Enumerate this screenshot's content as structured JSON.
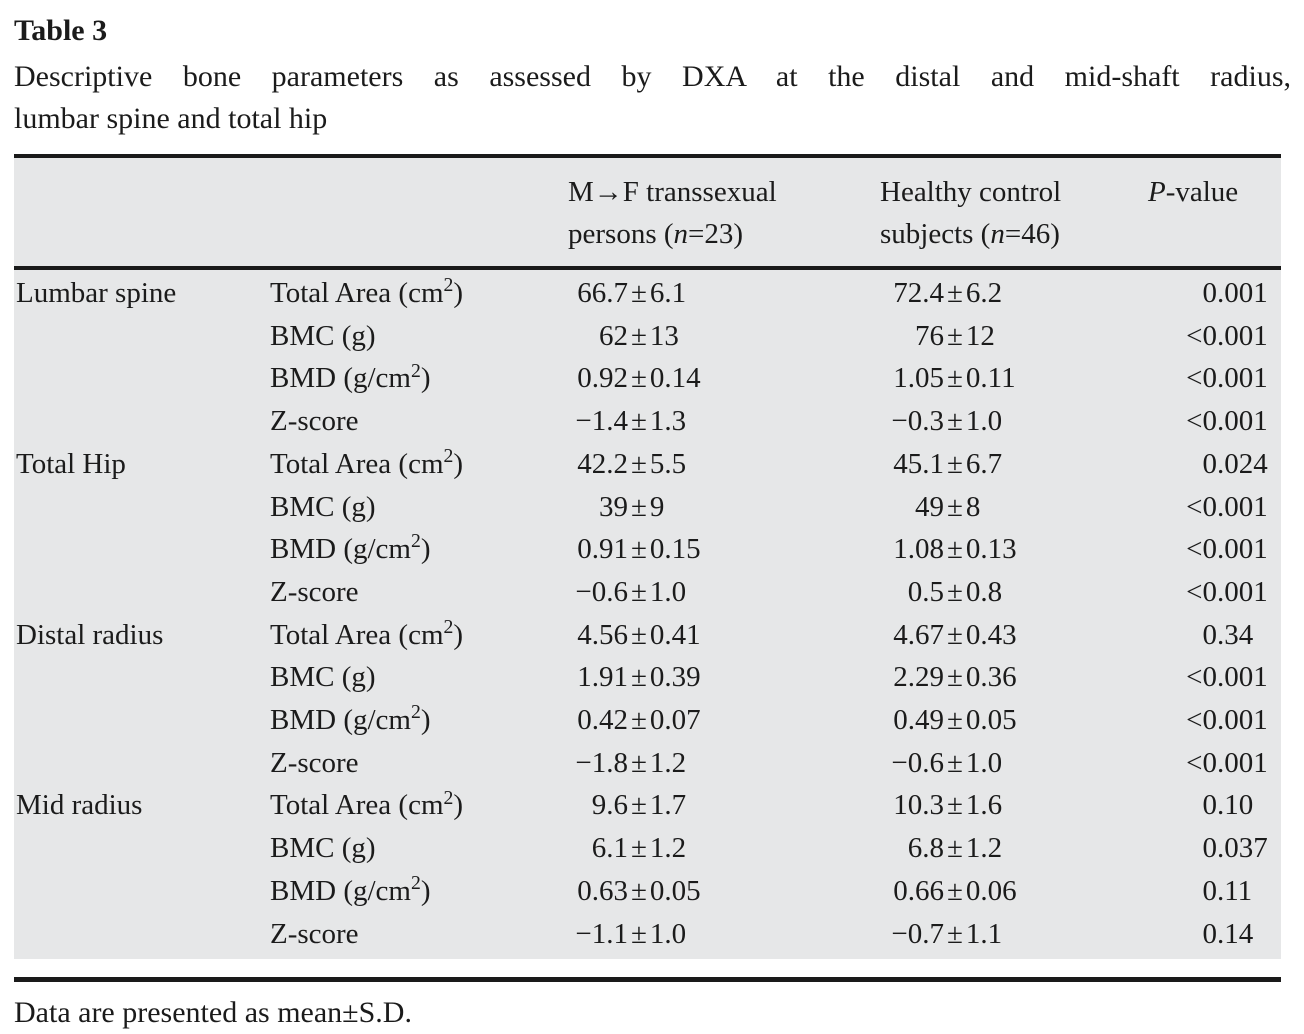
{
  "title": "Table 3",
  "caption": {
    "lines": [
      "Descriptive bone parameters as assessed by DXA at the distal and mid-shaft radius,",
      "lumbar spine and total hip"
    ]
  },
  "footnote": "Data are presented as mean±S.D.",
  "table": {
    "header": {
      "site_col": "",
      "param_col": "",
      "col_mf": {
        "line1": "M→F transsexual",
        "line2": "persons (*n*=23)"
      },
      "col_control": {
        "line1": "Healthy control",
        "line2": "subjects (*n*=46)"
      },
      "col_p": "*P*-value"
    },
    "sections": [
      {
        "site": "Lumbar spine",
        "rows": [
          {
            "param": "Total Area (cm^2)",
            "mf": "66.7±6.1",
            "control": "72.4±6.2",
            "p": "0.001"
          },
          {
            "param": "BMC (g)",
            "mf": "62±13",
            "control": "76±12",
            "p": "<0.001"
          },
          {
            "param": "BMD (g/cm^2)",
            "mf": "0.92±0.14",
            "control": "1.05±0.11",
            "p": "<0.001"
          },
          {
            "param": "Z-score",
            "mf": "−1.4±1.3",
            "control": "−0.3±1.0",
            "p": "<0.001"
          }
        ]
      },
      {
        "site": "Total Hip",
        "rows": [
          {
            "param": "Total Area (cm^2)",
            "mf": "42.2±5.5",
            "control": "45.1±6.7",
            "p": "0.024"
          },
          {
            "param": "BMC (g)",
            "mf": "39±9",
            "control": "49±8",
            "p": "<0.001"
          },
          {
            "param": "BMD (g/cm^2)",
            "mf": "0.91±0.15",
            "control": "1.08±0.13",
            "p": "<0.001"
          },
          {
            "param": "Z-score",
            "mf": "−0.6±1.0",
            "control": "0.5±0.8",
            "p": "<0.001"
          }
        ]
      },
      {
        "site": "Distal radius",
        "rows": [
          {
            "param": "Total Area (cm^2)",
            "mf": "4.56±0.41",
            "control": "4.67±0.43",
            "p": "0.34"
          },
          {
            "param": "BMC (g)",
            "mf": "1.91±0.39",
            "control": "2.29±0.36",
            "p": "<0.001"
          },
          {
            "param": "BMD (g/cm^2)",
            "mf": "0.42±0.07",
            "control": "0.49±0.05",
            "p": "<0.001"
          },
          {
            "param": "Z-score",
            "mf": "−1.8±1.2",
            "control": "−0.6±1.0",
            "p": "<0.001"
          }
        ]
      },
      {
        "site": "Mid radius",
        "rows": [
          {
            "param": "Total Area (cm^2)",
            "mf": "9.6±1.7",
            "control": "10.3±1.6",
            "p": "0.10"
          },
          {
            "param": "BMC (g)",
            "mf": "6.1±1.2",
            "control": "6.8±1.2",
            "p": "0.037"
          },
          {
            "param": "BMD (g/cm^2)",
            "mf": "0.63±0.05",
            "control": "0.66±0.06",
            "p": "0.11"
          },
          {
            "param": "Z-score",
            "mf": "−1.1±1.0",
            "control": "−0.7±1.1",
            "p": "0.14"
          }
        ]
      }
    ]
  }
}
